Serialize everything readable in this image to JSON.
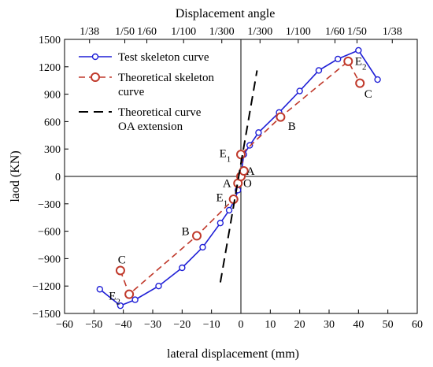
{
  "chart_data": {
    "type": "line",
    "title": "",
    "xlabel": "lateral displacement  (mm)",
    "ylabel": "laod (KN)",
    "x2label": "Displacement angle",
    "xlim": [
      -60,
      60
    ],
    "ylim": [
      -1500,
      1500
    ],
    "xticks": [
      -60,
      -50,
      -40,
      -30,
      -20,
      -10,
      0,
      10,
      20,
      30,
      40,
      50,
      60
    ],
    "yticks": [
      -1500,
      -1200,
      -900,
      -600,
      -300,
      0,
      300,
      600,
      900,
      1200,
      1500
    ],
    "top_ticks": [
      {
        "label": "1/38",
        "x": -51.5
      },
      {
        "label": "1/50",
        "x": -39.5
      },
      {
        "label": "1/60",
        "x": -32
      },
      {
        "label": "1/100",
        "x": -19.5
      },
      {
        "label": "1/300",
        "x": -6.5
      },
      {
        "label": "1/300",
        "x": 6.5
      },
      {
        "label": "1/100",
        "x": 19.5
      },
      {
        "label": "1/60",
        "x": 32
      },
      {
        "label": "1/50",
        "x": 39.5
      },
      {
        "label": "1/38",
        "x": 51.5
      }
    ],
    "legend": {
      "position": "top-left",
      "entries": [
        {
          "label": "Test skeleton curve",
          "series": "test"
        },
        {
          "label_lines": [
            "Theoretical skeleton",
            " curve"
          ],
          "series": "theory"
        },
        {
          "label_lines": [
            "Theoretical curve",
            "OA extension"
          ],
          "series": "extension"
        }
      ]
    },
    "series": [
      {
        "name": "Test skeleton curve",
        "key": "test",
        "color": "#1f1fd6",
        "style": "solid",
        "marker": "open-circle",
        "x": [
          -48,
          -41,
          -36,
          -28,
          -20,
          -13,
          -7,
          -4,
          -2,
          -1,
          0,
          1,
          3,
          6,
          13,
          20,
          26.5,
          33,
          40,
          46.5
        ],
        "y": [
          -1235,
          -1415,
          -1350,
          -1200,
          -1000,
          -775,
          -510,
          -370,
          -250,
          -150,
          0,
          240,
          340,
          480,
          700,
          935,
          1160,
          1285,
          1380,
          1060
        ]
      },
      {
        "name": "Theoretical skeleton curve",
        "key": "theory",
        "color": "#c0392b",
        "style": "dashed",
        "marker": "open-circle-red",
        "x": [
          -41,
          -38,
          -15,
          -2.5,
          -1,
          0,
          1,
          0,
          13.5,
          36.5,
          40.5
        ],
        "y": [
          -1030,
          -1290,
          -650,
          -250,
          -75,
          0,
          60,
          240,
          650,
          1260,
          1020
        ]
      },
      {
        "name": "Theoretical curve OA extension",
        "key": "extension",
        "color": "#000000",
        "style": "dashed",
        "marker": "none",
        "x": [
          -7,
          5.5
        ],
        "y": [
          -1160,
          1160
        ]
      }
    ],
    "annotations": [
      {
        "text": "A",
        "x": 1.8,
        "y": 60,
        "anchor": "start"
      },
      {
        "text": "O",
        "x": 0.8,
        "y": -75,
        "anchor": "start"
      },
      {
        "text": "A",
        "x": -3.3,
        "y": -75,
        "anchor": "end"
      },
      {
        "text": "E",
        "sub": "1",
        "x": -3.4,
        "y": 255,
        "anchor": "end"
      },
      {
        "text": "E",
        "sub": "1",
        "x": -4.5,
        "y": -230,
        "anchor": "end"
      },
      {
        "text": "B",
        "x": 16,
        "y": 550,
        "anchor": "start"
      },
      {
        "text": "B",
        "x": -17.5,
        "y": -600,
        "anchor": "end"
      },
      {
        "text": "E",
        "sub": "2",
        "x": 38.8,
        "y": 1265,
        "anchor": "start"
      },
      {
        "text": "C",
        "x": 42,
        "y": 905,
        "anchor": "start"
      },
      {
        "text": "C",
        "x": -40.5,
        "y": -910,
        "anchor": "middle"
      },
      {
        "text": "E",
        "sub": "2",
        "x": -41,
        "y": -1305,
        "anchor": "end"
      }
    ],
    "grid": false
  }
}
